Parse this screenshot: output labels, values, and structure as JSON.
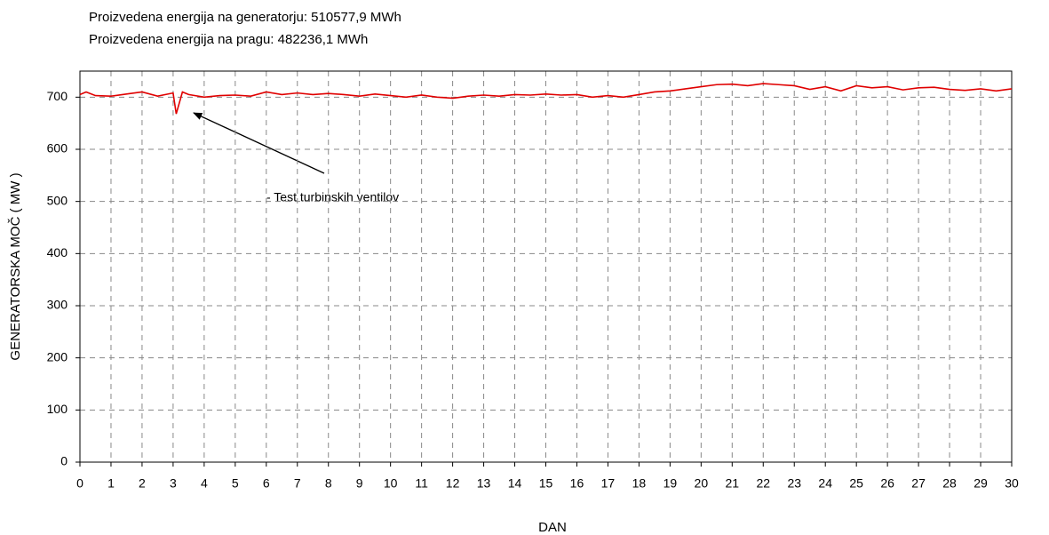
{
  "chart_data": {
    "type": "line",
    "title": "Proizvedena energija na generatorju: 510577,9 MWh",
    "subtitle": "Proizvedena energija na pragu: 482236,1 MWh",
    "x_label": "DAN",
    "y_label": "GENERATORSKA MOČ ( MW )",
    "annotation": "- Test turbinskih ventilov",
    "x": [
      0,
      0.2,
      0.5,
      1,
      1.5,
      2,
      2.5,
      3,
      3.1,
      3.3,
      3.5,
      4,
      4.5,
      5,
      5.5,
      6,
      6.5,
      7,
      7.5,
      8,
      8.5,
      9,
      9.5,
      10,
      10.5,
      11,
      11.5,
      12,
      12.5,
      13,
      13.5,
      14,
      14.5,
      15,
      15.5,
      16,
      16.5,
      17,
      17.5,
      18,
      18.5,
      19,
      19.5,
      20,
      20.5,
      21,
      21.5,
      22,
      22.5,
      23,
      23.5,
      24,
      24.5,
      25,
      25.5,
      26,
      26.5,
      27,
      27.5,
      28,
      28.5,
      29,
      29.5,
      30
    ],
    "series": [
      {
        "color": "#e00000",
        "values": [
          705,
          710,
          703,
          702,
          706,
          710,
          702,
          708,
          668,
          710,
          705,
          700,
          703,
          704,
          702,
          710,
          705,
          708,
          705,
          707,
          705,
          702,
          706,
          703,
          700,
          704,
          700,
          698,
          702,
          704,
          702,
          705,
          704,
          706,
          704,
          705,
          700,
          703,
          700,
          705,
          710,
          712,
          716,
          720,
          724,
          725,
          722,
          726,
          724,
          722,
          715,
          720,
          712,
          722,
          718,
          720,
          714,
          718,
          719,
          715,
          713,
          716,
          712,
          716
        ]
      }
    ],
    "xlim": [
      0,
      30
    ],
    "xticks": [
      0,
      1,
      2,
      3,
      4,
      5,
      6,
      7,
      8,
      9,
      10,
      11,
      12,
      13,
      14,
      15,
      16,
      17,
      18,
      19,
      20,
      21,
      22,
      23,
      24,
      25,
      26,
      27,
      28,
      29,
      30
    ],
    "ylim": [
      0,
      750
    ],
    "yticks": [
      0,
      100,
      200,
      300,
      400,
      500,
      600,
      700
    ],
    "grid": true
  }
}
